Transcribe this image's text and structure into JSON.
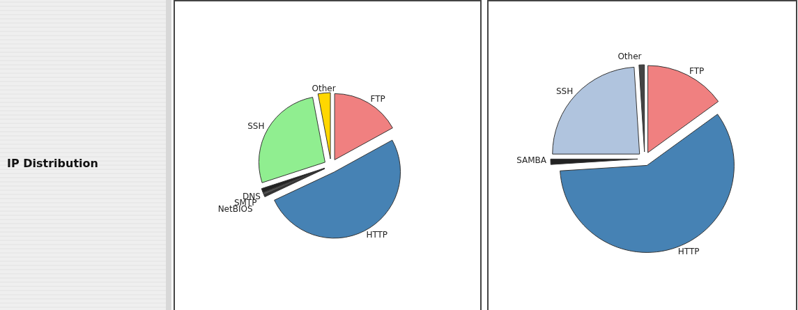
{
  "chart_data": [
    {
      "type": "pie",
      "title": "IP Distribution",
      "categories": [
        "FTP",
        "HTTP",
        "DNS",
        "SMTP",
        "NetBIOS",
        "SSH",
        "Other"
      ],
      "values": [
        17,
        51,
        0.5,
        0.5,
        1,
        27,
        3
      ],
      "colors": [
        "#f08080",
        "#4682b4",
        "#333333",
        "#555555",
        "#222222",
        "#90ee90",
        "#ffd700"
      ]
    },
    {
      "type": "pie",
      "categories": [
        "FTP",
        "HTTP",
        "SAMBA",
        "SSH",
        "Other"
      ],
      "values": [
        15,
        59,
        1,
        24,
        1
      ],
      "colors": [
        "#f08080",
        "#4682b4",
        "#222222",
        "#b0c4de",
        "#444444"
      ]
    }
  ]
}
